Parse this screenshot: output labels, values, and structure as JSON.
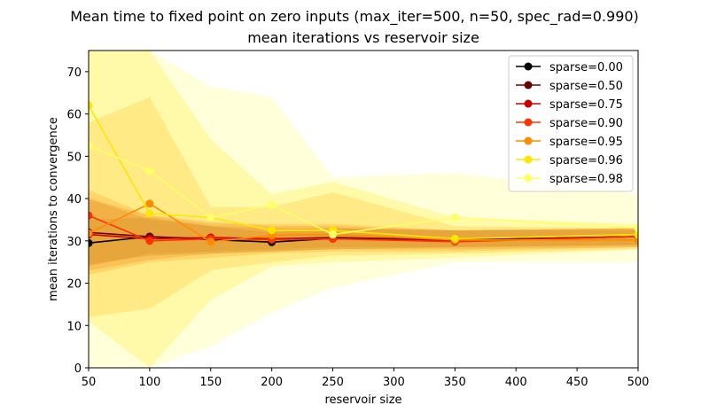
{
  "chart_data": {
    "type": "line",
    "title": "Mean time to fixed point on zero inputs (max_iter=500, n=50, spec_rad=0.990)",
    "subtitle": "mean iterations vs reservoir size",
    "xlabel": "reservoir size",
    "ylabel": "mean iterations to convergence",
    "xlim": [
      50,
      500
    ],
    "ylim": [
      0,
      75
    ],
    "xticks": [
      50,
      100,
      150,
      200,
      250,
      300,
      350,
      400,
      450,
      500
    ],
    "yticks": [
      0,
      10,
      20,
      30,
      40,
      50,
      60,
      70
    ],
    "grid": false,
    "legend_position": "top-right",
    "x": [
      50,
      100,
      150,
      200,
      250,
      350,
      500
    ],
    "series": [
      {
        "name": "sparse=0.00",
        "color": "#000000",
        "values": [
          29.5,
          31.0,
          30.3,
          29.7,
          30.6,
          30.3,
          31.0
        ],
        "lower": [
          24.5,
          26.5,
          27.0,
          27.5,
          28.0,
          28.5,
          29.0
        ],
        "upper": [
          35.0,
          35.5,
          33.5,
          32.0,
          33.0,
          32.5,
          32.5
        ]
      },
      {
        "name": "sparse=0.50",
        "color": "#6b0000",
        "values": [
          32.0,
          31.0,
          30.5,
          30.5,
          30.8,
          30.2,
          31.0
        ],
        "lower": [
          24.0,
          27.0,
          27.5,
          28.0,
          28.5,
          28.5,
          29.0
        ],
        "upper": [
          40.0,
          35.0,
          33.5,
          33.0,
          33.0,
          32.5,
          33.0
        ]
      },
      {
        "name": "sparse=0.75",
        "color": "#cc0000",
        "values": [
          31.5,
          30.5,
          30.8,
          30.5,
          30.5,
          30.0,
          31.0
        ],
        "lower": [
          23.0,
          25.5,
          27.0,
          27.5,
          28.0,
          28.0,
          28.5
        ],
        "upper": [
          40.0,
          36.0,
          34.5,
          33.5,
          33.5,
          32.5,
          33.0
        ]
      },
      {
        "name": "sparse=0.90",
        "color": "#ff3300",
        "values": [
          36.0,
          30.0,
          30.5,
          30.3,
          30.5,
          29.8,
          31.0
        ],
        "lower": [
          22.0,
          25.0,
          26.0,
          27.0,
          27.5,
          27.5,
          28.5
        ],
        "upper": [
          42.0,
          36.0,
          34.0,
          34.0,
          34.0,
          32.5,
          33.0
        ]
      },
      {
        "name": "sparse=0.95",
        "color": "#ff8c00",
        "values": [
          31.8,
          38.8,
          29.8,
          31.3,
          31.5,
          30.2,
          30.2
        ],
        "lower": [
          12.0,
          14.0,
          23.0,
          25.0,
          26.5,
          27.0,
          28.0
        ],
        "upper": [
          58.0,
          64.0,
          38.0,
          38.0,
          41.5,
          33.5,
          33.0
        ]
      },
      {
        "name": "sparse=0.96",
        "color": "#ffe600",
        "values": [
          62.0,
          36.5,
          35.5,
          32.5,
          32.5,
          30.5,
          31.5
        ],
        "lower": [
          11.0,
          0.0,
          16.0,
          24.0,
          25.0,
          26.0,
          28.0
        ],
        "upper": [
          75.0,
          75.0,
          54.0,
          41.0,
          44.0,
          35.5,
          34.0
        ]
      },
      {
        "name": "sparse=0.98",
        "color": "#ffff66",
        "values": [
          52.5,
          46.5,
          35.5,
          38.5,
          31.5,
          35.5,
          33.0
        ],
        "lower": [
          0.0,
          0.0,
          5.0,
          13.0,
          19.0,
          25.0,
          25.0
        ],
        "upper": [
          75.0,
          75.0,
          66.5,
          64.0,
          45.0,
          46.0,
          41.0
        ]
      }
    ]
  }
}
